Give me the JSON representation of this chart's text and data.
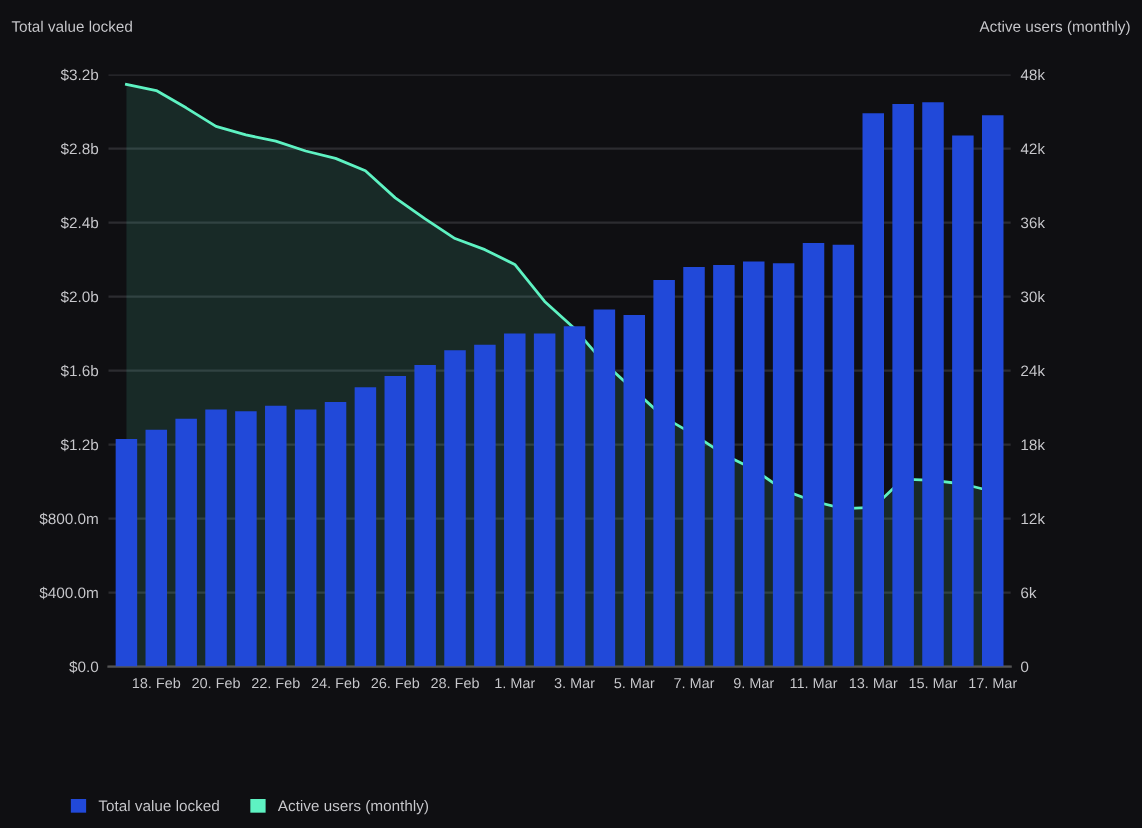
{
  "chart_data": {
    "type": "bar",
    "ylabel": "Total value locked",
    "y2label": "Active users (monthly)",
    "categories": [
      null,
      "18. Feb",
      null,
      "20. Feb",
      null,
      "22. Feb",
      null,
      "24. Feb",
      null,
      "26. Feb",
      null,
      "28. Feb",
      null,
      "1. Mar",
      null,
      "3. Mar",
      null,
      "5. Mar",
      null,
      "7. Mar",
      null,
      "9. Mar",
      null,
      "11. Mar",
      null,
      "13. Mar",
      null,
      "15. Mar",
      null,
      "17. Mar"
    ],
    "series": [
      {
        "name": "Total value locked",
        "color": "#2149d9",
        "values": [
          1230000000,
          1280000000,
          1340000000,
          1390000000,
          1380000000,
          1410000000,
          1390000000,
          1430000000,
          1510000000,
          1570000000,
          1630000000,
          1710000000,
          1740000000,
          1800000000,
          1800000000,
          1840000000,
          1930000000,
          1900000000,
          2090000000,
          2160000000,
          2170000000,
          2190000000,
          2180000000,
          2290000000,
          2280000000,
          2990000000,
          3040000000,
          3050000000,
          2870000000,
          2980000000
        ]
      },
      {
        "name": "Active users (monthly)",
        "type": "area",
        "axis": "y2",
        "color": "#5ef2c2",
        "values": [
          47200,
          46700,
          45300,
          43800,
          43100,
          42600,
          41800,
          41200,
          40200,
          38000,
          36300,
          34700,
          33800,
          32600,
          29600,
          27400,
          24600,
          22400,
          20200,
          18800,
          17200,
          16000,
          14300,
          13400,
          12800,
          12900,
          15200,
          15100,
          14800,
          14200
        ]
      }
    ],
    "ylim": [
      0,
      3200000000
    ],
    "yticks": [
      {
        "value": 0,
        "label": "$0.0"
      },
      {
        "value": 400000000,
        "label": "$400.0m"
      },
      {
        "value": 800000000,
        "label": "$800.0m"
      },
      {
        "value": 1200000000,
        "label": "$1.2b"
      },
      {
        "value": 1600000000,
        "label": "$1.6b"
      },
      {
        "value": 2000000000,
        "label": "$2.0b"
      },
      {
        "value": 2400000000,
        "label": "$2.4b"
      },
      {
        "value": 2800000000,
        "label": "$2.8b"
      },
      {
        "value": 3200000000,
        "label": "$3.2b"
      }
    ],
    "y2lim": [
      0,
      48000
    ],
    "y2ticks": [
      0,
      {
        "value": 6000,
        "label": "6k"
      },
      {
        "value": 12000,
        "label": "12k"
      },
      {
        "value": 18000,
        "label": "18k"
      },
      {
        "value": 24000,
        "label": "24k"
      },
      {
        "value": 30000,
        "label": "30k"
      },
      {
        "value": 36000,
        "label": "36k"
      },
      {
        "value": 42000,
        "label": "42k"
      },
      {
        "value": 48000,
        "label": "48k"
      }
    ],
    "grid": "y",
    "legend": "bottom left"
  }
}
